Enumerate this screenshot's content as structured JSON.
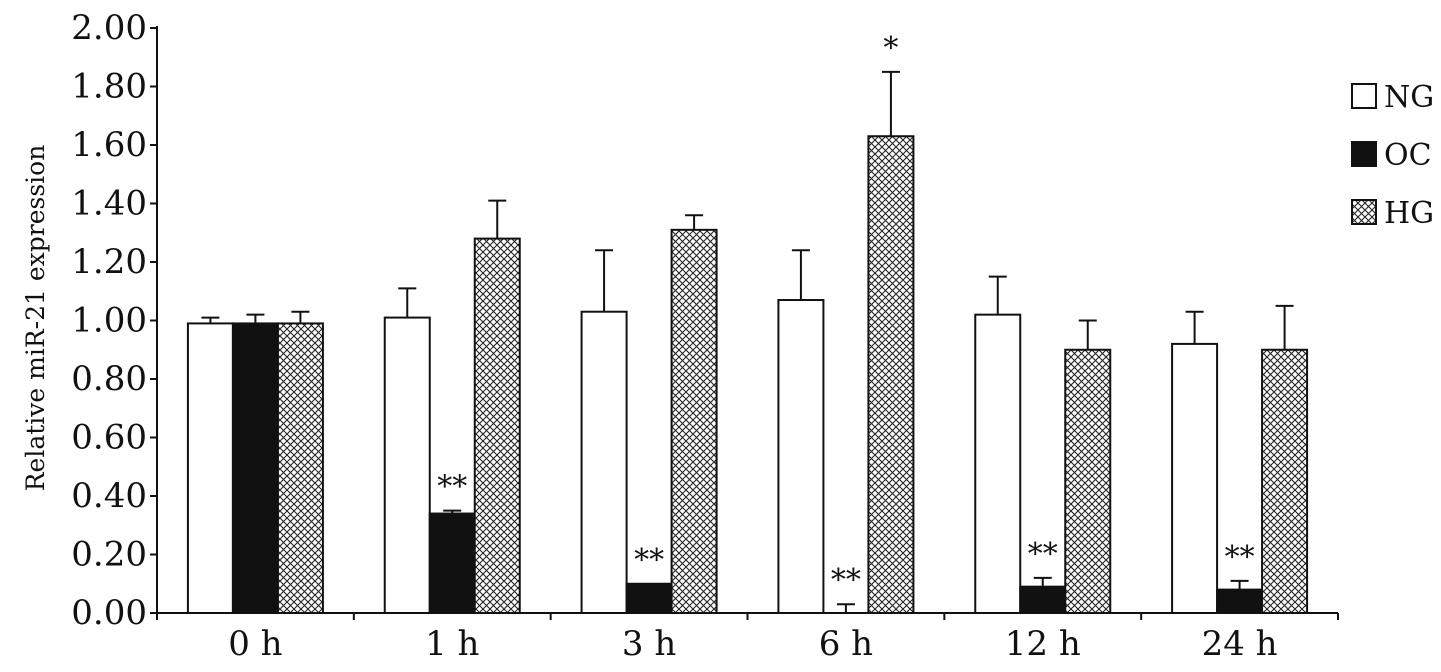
{
  "chart_data": {
    "type": "bar",
    "title": "",
    "xlabel": "",
    "ylabel": "Relative miR-21 expression",
    "ylim": [
      0,
      2.0
    ],
    "yticks": [
      "0.00",
      "0.20",
      "0.40",
      "0.60",
      "0.80",
      "1.00",
      "1.20",
      "1.40",
      "1.60",
      "1.80",
      "2.00"
    ],
    "categories": [
      "0 h",
      "1 h",
      "3 h",
      "6 h",
      "12 h",
      "24 h"
    ],
    "legend_position": "right",
    "series": [
      {
        "name": "NG",
        "fill": "white",
        "values": [
          0.99,
          1.01,
          1.03,
          1.07,
          1.02,
          0.92
        ],
        "errors": [
          0.02,
          0.1,
          0.21,
          0.17,
          0.13,
          0.11
        ],
        "significance": [
          "",
          "",
          "",
          "",
          "",
          ""
        ]
      },
      {
        "name": "OC",
        "fill": "black",
        "values": [
          0.99,
          0.34,
          0.1,
          0.0,
          0.09,
          0.08
        ],
        "errors": [
          0.03,
          0.01,
          0.0,
          0.03,
          0.03,
          0.03
        ],
        "significance": [
          "",
          "**",
          "**",
          "**",
          "**",
          "**"
        ]
      },
      {
        "name": "HG",
        "fill": "crosshatch",
        "values": [
          0.99,
          1.28,
          1.31,
          1.63,
          0.9,
          0.9
        ],
        "errors": [
          0.04,
          0.13,
          0.05,
          0.22,
          0.1,
          0.15
        ],
        "significance": [
          "",
          "",
          "",
          "*",
          "",
          ""
        ]
      }
    ],
    "colors": {
      "NG": "#ffffff",
      "OC": "#111111",
      "HG": "#cfcfcf",
      "stroke": "#111111"
    }
  }
}
